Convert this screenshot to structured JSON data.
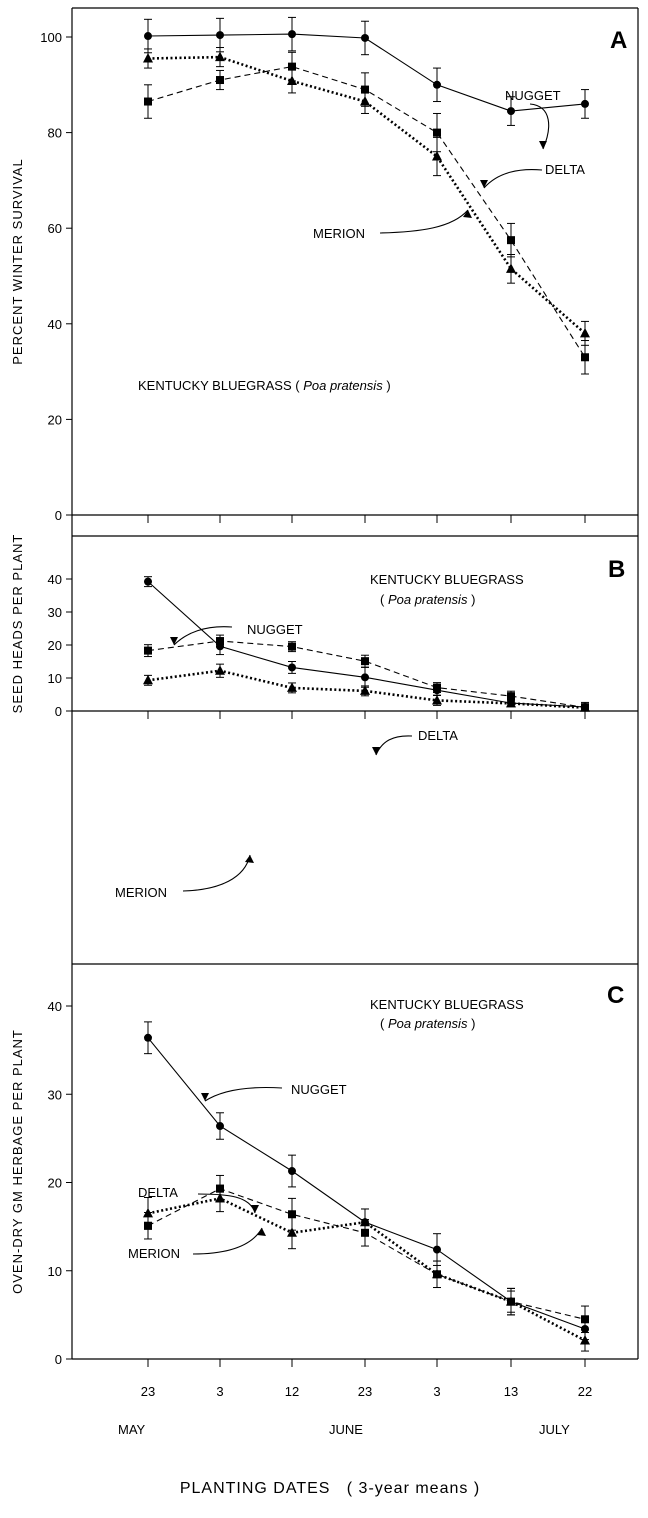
{
  "chart_data": {
    "xlabel": "PLANTING DATES   ( 3-year means )",
    "x_tick_labels": [
      "23",
      "3",
      "12",
      "23",
      "3",
      "13",
      "22"
    ],
    "month_labels": [
      "MAY",
      "JUNE",
      "JULY"
    ],
    "panels": [
      {
        "type": "line",
        "panel_label": "A",
        "ylabel": "PERCENT WINTER SURVIVAL",
        "ylim": [
          0,
          105
        ],
        "yticks": [
          0,
          20,
          40,
          60,
          80,
          100
        ],
        "caption_main": "KENTUCKY  BLUEGRASS  (",
        "caption_species": "Poa pratensis",
        "caption_close": ")",
        "series": [
          {
            "name": "NUGGET",
            "marker": "circle",
            "line": "solid",
            "values": [
              100.2,
              100.4,
              100.6,
              99.8,
              90.0,
              84.5,
              86.0
            ],
            "errors": [
              3.5,
              3.5,
              3.5,
              3.5,
              3.5,
              3.0,
              3.0
            ]
          },
          {
            "name": "DELTA",
            "marker": "square",
            "line": "dashed",
            "values": [
              86.5,
              91.0,
              93.8,
              89.0,
              80.0,
              57.5,
              33.0
            ],
            "errors": [
              3.5,
              2.0,
              3.0,
              3.5,
              4.0,
              3.5,
              3.5
            ]
          },
          {
            "name": "MERION",
            "marker": "triangle",
            "line": "dotted",
            "values": [
              95.5,
              95.8,
              90.8,
              86.5,
              75.0,
              51.5,
              38.0
            ],
            "errors": [
              2.0,
              2.0,
              2.5,
              2.5,
              4.0,
              3.0,
              2.5
            ]
          }
        ]
      },
      {
        "type": "line",
        "panel_label": "B",
        "ylabel": "SEED  HEADS  PER  PLANT",
        "ylim": [
          0,
          45
        ],
        "yticks": [
          0,
          10,
          20,
          30,
          40
        ],
        "caption_main": "KENTUCKY  BLUEGRASS",
        "caption_species": "Poa pratensis",
        "caption_open": "(",
        "caption_close": ")",
        "series": [
          {
            "name": "NUGGET",
            "marker": "circle",
            "line": "solid",
            "values": [
              39.2,
              19.6,
              13.2,
              10.2,
              6.3,
              2.4,
              1.2
            ],
            "errors": [
              1.5,
              2.5,
              1.8,
              3.0,
              1.5,
              1.0,
              1.0
            ]
          },
          {
            "name": "DELTA",
            "marker": "square",
            "line": "dashed",
            "values": [
              18.3,
              21.2,
              19.5,
              15.1,
              7.1,
              4.5,
              1.1
            ],
            "errors": [
              1.8,
              1.8,
              1.5,
              1.8,
              1.5,
              1.5,
              1.5
            ]
          },
          {
            "name": "MERION",
            "marker": "triangle",
            "line": "dotted",
            "values": [
              9.3,
              12.2,
              7.0,
              6.1,
              3.2,
              2.3,
              1.0
            ],
            "errors": [
              1.5,
              2.0,
              1.5,
              1.5,
              1.5,
              1.0,
              0.8
            ]
          }
        ]
      },
      {
        "type": "line",
        "panel_label": "C",
        "ylabel": "OVEN-DRY  GM  HERBAGE  PER  PLANT",
        "ylim": [
          0,
          45
        ],
        "yticks": [
          0,
          10,
          20,
          30,
          40
        ],
        "caption_main": "KENTUCKY  BLUEGRASS",
        "caption_species": "Poa pratensis",
        "caption_open": "(",
        "caption_close": ")",
        "series": [
          {
            "name": "NUGGET",
            "marker": "circle",
            "line": "solid",
            "values": [
              36.4,
              26.4,
              21.3,
              15.5,
              12.4,
              6.5,
              3.4
            ],
            "errors": [
              1.8,
              1.5,
              1.8,
              1.5,
              1.8,
              1.5,
              1.2
            ]
          },
          {
            "name": "DELTA",
            "marker": "square",
            "line": "dashed",
            "values": [
              15.1,
              19.3,
              16.4,
              14.3,
              9.6,
              6.5,
              4.5
            ],
            "errors": [
              1.5,
              1.5,
              1.8,
              1.5,
              1.5,
              1.5,
              1.5
            ]
          },
          {
            "name": "MERION",
            "marker": "triangle",
            "line": "dotted",
            "values": [
              16.5,
              18.2,
              14.3,
              15.5,
              9.6,
              6.5,
              2.1
            ],
            "errors": [
              1.8,
              1.5,
              1.8,
              1.5,
              1.5,
              1.2,
              1.2
            ]
          }
        ]
      }
    ]
  }
}
